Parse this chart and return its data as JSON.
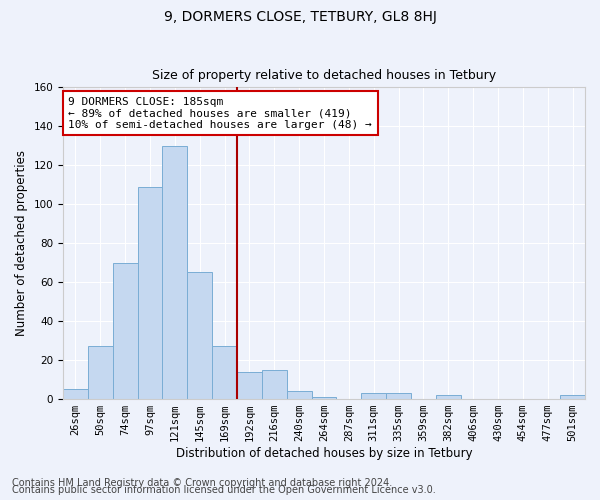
{
  "title": "9, DORMERS CLOSE, TETBURY, GL8 8HJ",
  "subtitle": "Size of property relative to detached houses in Tetbury",
  "xlabel": "Distribution of detached houses by size in Tetbury",
  "ylabel": "Number of detached properties",
  "bar_labels": [
    "26sqm",
    "50sqm",
    "74sqm",
    "97sqm",
    "121sqm",
    "145sqm",
    "169sqm",
    "192sqm",
    "216sqm",
    "240sqm",
    "264sqm",
    "287sqm",
    "311sqm",
    "335sqm",
    "359sqm",
    "382sqm",
    "406sqm",
    "430sqm",
    "454sqm",
    "477sqm",
    "501sqm"
  ],
  "bar_heights": [
    5,
    27,
    70,
    109,
    130,
    65,
    27,
    14,
    15,
    4,
    1,
    0,
    3,
    3,
    0,
    2,
    0,
    0,
    0,
    0,
    2
  ],
  "bar_color": "#c5d8f0",
  "bar_edge_color": "#7aadd4",
  "vline_index": 7,
  "vline_color": "#aa0000",
  "annotation_line1": "9 DORMERS CLOSE: 185sqm",
  "annotation_line2": "← 89% of detached houses are smaller (419)",
  "annotation_line3": "10% of semi-detached houses are larger (48) →",
  "annotation_box_facecolor": "#ffffff",
  "annotation_box_edgecolor": "#cc0000",
  "ylim": [
    0,
    160
  ],
  "yticks": [
    0,
    20,
    40,
    60,
    80,
    100,
    120,
    140,
    160
  ],
  "footer1": "Contains HM Land Registry data © Crown copyright and database right 2024.",
  "footer2": "Contains public sector information licensed under the Open Government Licence v3.0.",
  "background_color": "#eef2fb",
  "grid_color": "#ffffff",
  "title_fontsize": 10,
  "subtitle_fontsize": 9,
  "axis_label_fontsize": 8.5,
  "tick_fontsize": 7.5,
  "annotation_fontsize": 8,
  "footer_fontsize": 7
}
